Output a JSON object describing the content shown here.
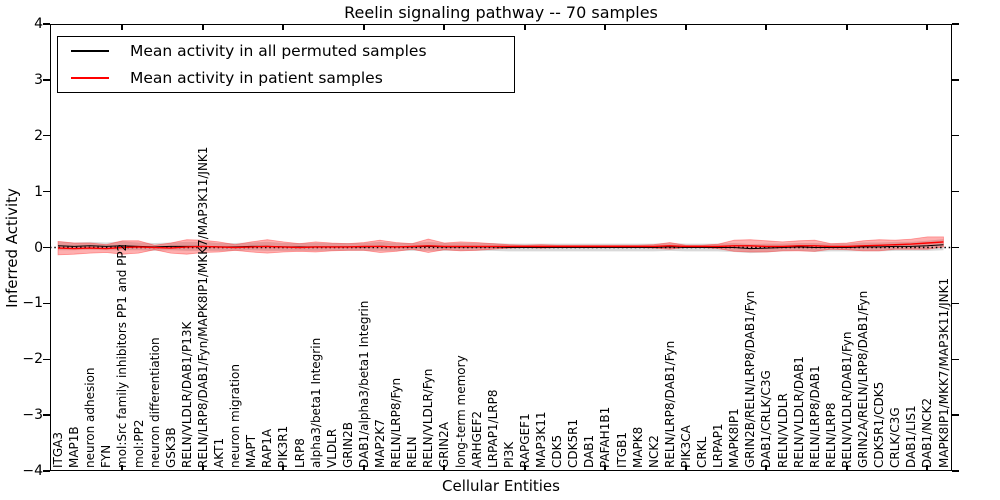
{
  "title": "Reelin signaling pathway -- 70 samples",
  "axes": {
    "x_label": "Cellular Entities",
    "y_label": "Inferred Activity"
  },
  "legend": {
    "position": "upper left",
    "items": [
      {
        "label": "Mean activity in all permuted samples",
        "color": "#000000"
      },
      {
        "label": "Mean activity in patient samples",
        "color": "#ff0000"
      }
    ]
  },
  "chart_data": {
    "type": "line",
    "title": "Reelin signaling pathway -- 70 samples",
    "xlabel": "Cellular Entities",
    "ylabel": "Inferred Activity",
    "ylim": [
      -4,
      4
    ],
    "y_ticks": [
      4,
      3,
      2,
      1,
      0,
      -1,
      -2,
      -3,
      -4
    ],
    "grid": false,
    "legend_position": "upper left",
    "zero_line": {
      "style": "dotted",
      "color": "#000000",
      "y": 0
    },
    "categories": [
      "ITGA3",
      "MAP1B",
      "neuron adhesion",
      "FYN",
      "mol:Src family inhibitors PP1 and PP2",
      "mol:PP2",
      "neuron differentiation",
      "GSK3B",
      "RELN/VLDLR/DAB1/P13K",
      "RELN/LRP8/DAB1/Fyn/MAPK8IP1/MKK7/MAP3K11/JNK1",
      "AKT1",
      "neuron migration",
      "MAPT",
      "RAP1A",
      "PIK3R1",
      "LRP8",
      "alpha3/beta1 Integrin",
      "VLDLR",
      "GRIN2B",
      "DAB1/alpha3/beta1 Integrin",
      "MAP2K7",
      "RELN/LRP8/Fyn",
      "RELN",
      "RELN/VLDLR/Fyn",
      "GRIN2A",
      "long-term memory",
      "ARHGEF2",
      "LRPAP1/LRP8",
      "PI3K",
      "RAPGEF1",
      "MAP3K11",
      "CDK5",
      "CDK5R1",
      "DAB1",
      "PAFAH1B1",
      "ITGB1",
      "MAPK8",
      "NCK2",
      "RELN/LRP8/DAB1/Fyn",
      "PIK3CA",
      "CRKL",
      "LRPAP1",
      "MAPK8IP1",
      "GRIN2B/RELN/LRP8/DAB1/Fyn",
      "DAB1/CRLK/C3G",
      "RELN/VLDLR",
      "RELN/VLDLR/DAB1",
      "RELN/LRP8/DAB1",
      "RELN/LRP8",
      "RELN/VLDLR/DAB1/Fyn",
      "GRIN2A/RELN/LRP8/DAB1/Fyn",
      "CDK5R1/CDK5",
      "CRLK/C3G",
      "DAB1/LIS1",
      "DAB1/NCK2",
      "MAPK8IP1/MKK7/MAP3K11/JNK1"
    ],
    "series": [
      {
        "name": "Mean activity in all permuted samples",
        "color": "#000000",
        "band_color": "#aaaaaa",
        "mean": [
          0.03,
          0.02,
          0.03,
          0.02,
          0.03,
          0.02,
          0.01,
          0.02,
          0.02,
          0.02,
          0.01,
          0.01,
          0.02,
          0.02,
          0.01,
          0.01,
          0.01,
          0.01,
          0.01,
          0.01,
          0.02,
          0.01,
          0.01,
          0.02,
          0.01,
          0.01,
          0.01,
          0.01,
          0.0,
          0.0,
          0.0,
          0.0,
          0.0,
          0.0,
          0.0,
          0.0,
          0.0,
          0.0,
          0.01,
          0.0,
          0.0,
          0.0,
          0.0,
          -0.02,
          -0.01,
          0.0,
          0.01,
          0.0,
          0.0,
          0.0,
          0.01,
          0.01,
          0.02,
          0.02,
          0.03,
          0.05
        ],
        "band_halfwidth": [
          0.08,
          0.07,
          0.07,
          0.07,
          0.08,
          0.07,
          0.07,
          0.07,
          0.08,
          0.08,
          0.07,
          0.07,
          0.07,
          0.08,
          0.07,
          0.07,
          0.07,
          0.07,
          0.07,
          0.07,
          0.08,
          0.07,
          0.07,
          0.08,
          0.07,
          0.07,
          0.07,
          0.07,
          0.07,
          0.07,
          0.07,
          0.07,
          0.07,
          0.07,
          0.07,
          0.07,
          0.07,
          0.07,
          0.07,
          0.07,
          0.07,
          0.07,
          0.08,
          0.08,
          0.08,
          0.07,
          0.07,
          0.08,
          0.07,
          0.07,
          0.08,
          0.08,
          0.08,
          0.08,
          0.09,
          0.1
        ]
      },
      {
        "name": "Mean activity in patient samples",
        "color": "#ff0000",
        "band_color": "#ff2e2e",
        "mean": [
          -0.01,
          -0.02,
          -0.01,
          -0.02,
          0.0,
          0.01,
          0.0,
          -0.01,
          0.01,
          0.02,
          0.01,
          0.0,
          0.01,
          0.02,
          0.01,
          0.0,
          0.01,
          0.01,
          0.01,
          0.02,
          0.02,
          0.01,
          0.02,
          0.03,
          0.02,
          0.02,
          0.02,
          0.02,
          0.02,
          0.02,
          0.02,
          0.02,
          0.02,
          0.02,
          0.02,
          0.02,
          0.02,
          0.02,
          0.03,
          0.02,
          0.02,
          0.02,
          0.03,
          0.03,
          0.02,
          0.02,
          0.03,
          0.03,
          0.02,
          0.02,
          0.03,
          0.04,
          0.05,
          0.06,
          0.08,
          0.1
        ],
        "band_halfwidth": [
          0.12,
          0.1,
          0.09,
          0.07,
          0.12,
          0.11,
          0.04,
          0.09,
          0.13,
          0.11,
          0.09,
          0.05,
          0.09,
          0.12,
          0.09,
          0.07,
          0.09,
          0.07,
          0.06,
          0.07,
          0.11,
          0.08,
          0.05,
          0.12,
          0.06,
          0.08,
          0.07,
          0.05,
          0.03,
          0.02,
          0.03,
          0.02,
          0.02,
          0.02,
          0.02,
          0.02,
          0.02,
          0.03,
          0.06,
          0.02,
          0.02,
          0.04,
          0.1,
          0.11,
          0.1,
          0.08,
          0.09,
          0.1,
          0.05,
          0.06,
          0.09,
          0.1,
          0.08,
          0.09,
          0.11,
          0.09
        ]
      }
    ]
  }
}
